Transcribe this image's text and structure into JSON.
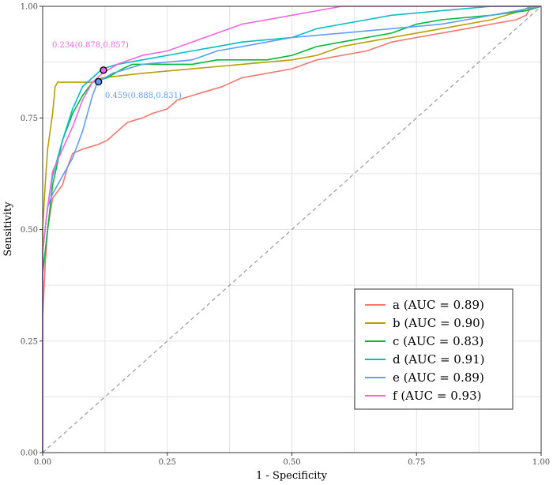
{
  "chart_data": {
    "type": "line",
    "xlabel": "1 - Specificity",
    "ylabel": "Sensitivity",
    "xlim": [
      0,
      1
    ],
    "ylim": [
      0,
      1
    ],
    "x_ticks": [
      "0.00",
      "0.25",
      "0.50",
      "0.75",
      "1.00"
    ],
    "y_ticks": [
      "0.00",
      "0.25",
      "0.50",
      "0.75",
      "1.00"
    ],
    "grid": true,
    "legend_position": "bottom-right",
    "diagonal_reference": true,
    "series": [
      {
        "name": "a (AUC = 0.89)",
        "color": "#F8766D",
        "points": [
          [
            0,
            0
          ],
          [
            0,
            0.3
          ],
          [
            0.005,
            0.42
          ],
          [
            0.01,
            0.5
          ],
          [
            0.02,
            0.57
          ],
          [
            0.04,
            0.6
          ],
          [
            0.05,
            0.64
          ],
          [
            0.06,
            0.67
          ],
          [
            0.08,
            0.68
          ],
          [
            0.11,
            0.69
          ],
          [
            0.13,
            0.7
          ],
          [
            0.15,
            0.72
          ],
          [
            0.17,
            0.74
          ],
          [
            0.2,
            0.75
          ],
          [
            0.22,
            0.76
          ],
          [
            0.25,
            0.77
          ],
          [
            0.27,
            0.79
          ],
          [
            0.3,
            0.8
          ],
          [
            0.33,
            0.81
          ],
          [
            0.36,
            0.82
          ],
          [
            0.4,
            0.84
          ],
          [
            0.45,
            0.85
          ],
          [
            0.5,
            0.86
          ],
          [
            0.55,
            0.88
          ],
          [
            0.6,
            0.89
          ],
          [
            0.65,
            0.9
          ],
          [
            0.7,
            0.92
          ],
          [
            0.75,
            0.93
          ],
          [
            0.8,
            0.94
          ],
          [
            0.85,
            0.95
          ],
          [
            0.9,
            0.96
          ],
          [
            0.95,
            0.97
          ],
          [
            0.97,
            0.98
          ],
          [
            0.98,
            1
          ],
          [
            1,
            1
          ]
        ]
      },
      {
        "name": "b (AUC = 0.90)",
        "color": "#B79F00",
        "points": [
          [
            0,
            0
          ],
          [
            0,
            0.5
          ],
          [
            0.005,
            0.6
          ],
          [
            0.01,
            0.68
          ],
          [
            0.02,
            0.76
          ],
          [
            0.025,
            0.82
          ],
          [
            0.03,
            0.83
          ],
          [
            0.1,
            0.83
          ],
          [
            0.12,
            0.84
          ],
          [
            0.2,
            0.85
          ],
          [
            0.3,
            0.86
          ],
          [
            0.4,
            0.87
          ],
          [
            0.5,
            0.88
          ],
          [
            0.55,
            0.89
          ],
          [
            0.6,
            0.91
          ],
          [
            0.65,
            0.92
          ],
          [
            0.7,
            0.93
          ],
          [
            0.8,
            0.95
          ],
          [
            0.9,
            0.97
          ],
          [
            0.96,
            0.99
          ],
          [
            0.98,
            1
          ],
          [
            1,
            1
          ]
        ]
      },
      {
        "name": "c (AUC = 0.83)",
        "color": "#00BA38",
        "points": [
          [
            0,
            0
          ],
          [
            0,
            0.4
          ],
          [
            0.01,
            0.5
          ],
          [
            0.02,
            0.6
          ],
          [
            0.04,
            0.7
          ],
          [
            0.06,
            0.76
          ],
          [
            0.08,
            0.8
          ],
          [
            0.1,
            0.83
          ],
          [
            0.13,
            0.84
          ],
          [
            0.16,
            0.86
          ],
          [
            0.18,
            0.87
          ],
          [
            0.25,
            0.87
          ],
          [
            0.3,
            0.87
          ],
          [
            0.35,
            0.88
          ],
          [
            0.45,
            0.88
          ],
          [
            0.5,
            0.89
          ],
          [
            0.55,
            0.91
          ],
          [
            0.6,
            0.92
          ],
          [
            0.7,
            0.94
          ],
          [
            0.75,
            0.96
          ],
          [
            0.8,
            0.97
          ],
          [
            0.9,
            0.98
          ],
          [
            0.97,
            0.99
          ],
          [
            1,
            1
          ]
        ]
      },
      {
        "name": "d (AUC = 0.91)",
        "color": "#00BFC4",
        "points": [
          [
            0,
            0
          ],
          [
            0,
            0.45
          ],
          [
            0.01,
            0.55
          ],
          [
            0.02,
            0.62
          ],
          [
            0.04,
            0.7
          ],
          [
            0.06,
            0.77
          ],
          [
            0.08,
            0.82
          ],
          [
            0.1,
            0.84
          ],
          [
            0.12,
            0.86
          ],
          [
            0.15,
            0.87
          ],
          [
            0.2,
            0.88
          ],
          [
            0.25,
            0.89
          ],
          [
            0.3,
            0.9
          ],
          [
            0.35,
            0.91
          ],
          [
            0.4,
            0.92
          ],
          [
            0.5,
            0.93
          ],
          [
            0.55,
            0.95
          ],
          [
            0.6,
            0.96
          ],
          [
            0.65,
            0.97
          ],
          [
            0.7,
            0.98
          ],
          [
            0.8,
            0.99
          ],
          [
            0.9,
            1
          ],
          [
            1,
            1
          ]
        ]
      },
      {
        "name": "e (AUC = 0.89)",
        "color": "#619CFF",
        "points": [
          [
            0,
            0
          ],
          [
            0,
            0.45
          ],
          [
            0.01,
            0.55
          ],
          [
            0.02,
            0.58
          ],
          [
            0.04,
            0.62
          ],
          [
            0.06,
            0.66
          ],
          [
            0.08,
            0.72
          ],
          [
            0.1,
            0.8
          ],
          [
            0.11,
            0.83
          ],
          [
            0.14,
            0.85
          ],
          [
            0.2,
            0.87
          ],
          [
            0.3,
            0.88
          ],
          [
            0.35,
            0.9
          ],
          [
            0.4,
            0.91
          ],
          [
            0.45,
            0.92
          ],
          [
            0.5,
            0.93
          ],
          [
            0.6,
            0.94
          ],
          [
            0.7,
            0.95
          ],
          [
            0.8,
            0.96
          ],
          [
            0.85,
            0.97
          ],
          [
            0.9,
            0.98
          ],
          [
            1,
            1
          ]
        ]
      },
      {
        "name": "f (AUC = 0.93)",
        "color": "#F564E3",
        "points": [
          [
            0,
            0
          ],
          [
            0,
            0.45
          ],
          [
            0.01,
            0.55
          ],
          [
            0.02,
            0.63
          ],
          [
            0.04,
            0.68
          ],
          [
            0.06,
            0.73
          ],
          [
            0.08,
            0.79
          ],
          [
            0.1,
            0.83
          ],
          [
            0.12,
            0.85
          ],
          [
            0.15,
            0.87
          ],
          [
            0.2,
            0.89
          ],
          [
            0.25,
            0.9
          ],
          [
            0.3,
            0.92
          ],
          [
            0.35,
            0.94
          ],
          [
            0.4,
            0.96
          ],
          [
            0.45,
            0.97
          ],
          [
            0.5,
            0.98
          ],
          [
            0.55,
            0.99
          ],
          [
            0.6,
            1
          ],
          [
            1,
            1
          ]
        ]
      }
    ],
    "annotations": [
      {
        "text": "0.234(0.878,0.857)",
        "color": "#F564E3",
        "point": [
          0.122,
          0.857
        ]
      },
      {
        "text": "0.459(0.888,0.831)",
        "color": "#619CFF",
        "point": [
          0.112,
          0.831
        ]
      }
    ]
  }
}
